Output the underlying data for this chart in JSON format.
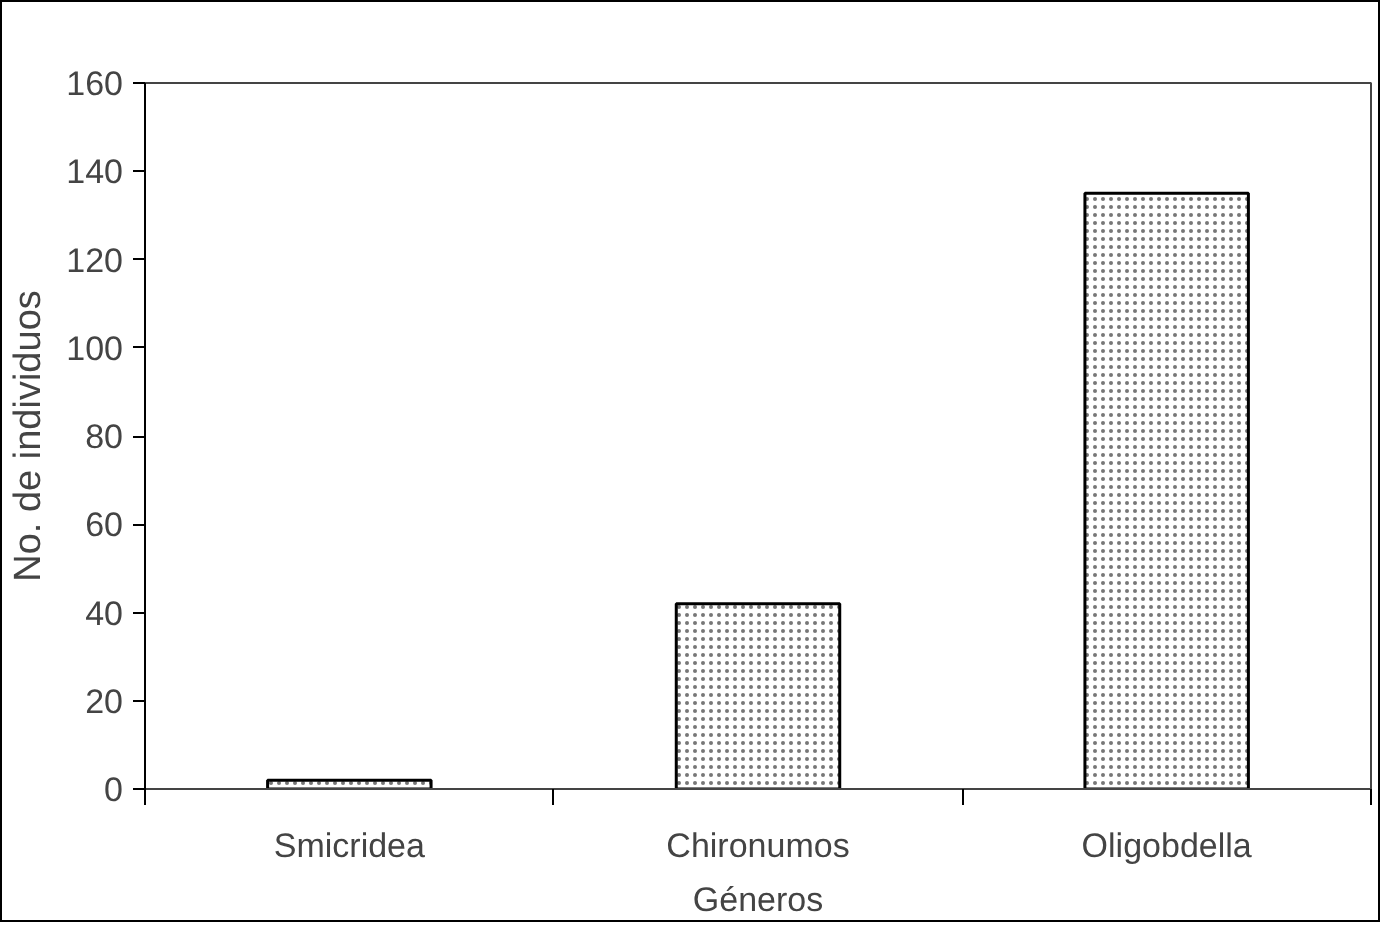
{
  "chart_data": {
    "type": "bar",
    "xlabel": "Géneros",
    "ylabel": "No. de individuos",
    "categories": [
      "Smicridea",
      "Chironumos",
      "Oligobdella"
    ],
    "values": [
      2,
      42,
      135
    ],
    "color": "#ffffff",
    "ylim": [
      0,
      160
    ],
    "yticks": [
      0,
      20,
      40,
      60,
      80,
      100,
      120,
      140,
      160
    ],
    "grid": false
  }
}
